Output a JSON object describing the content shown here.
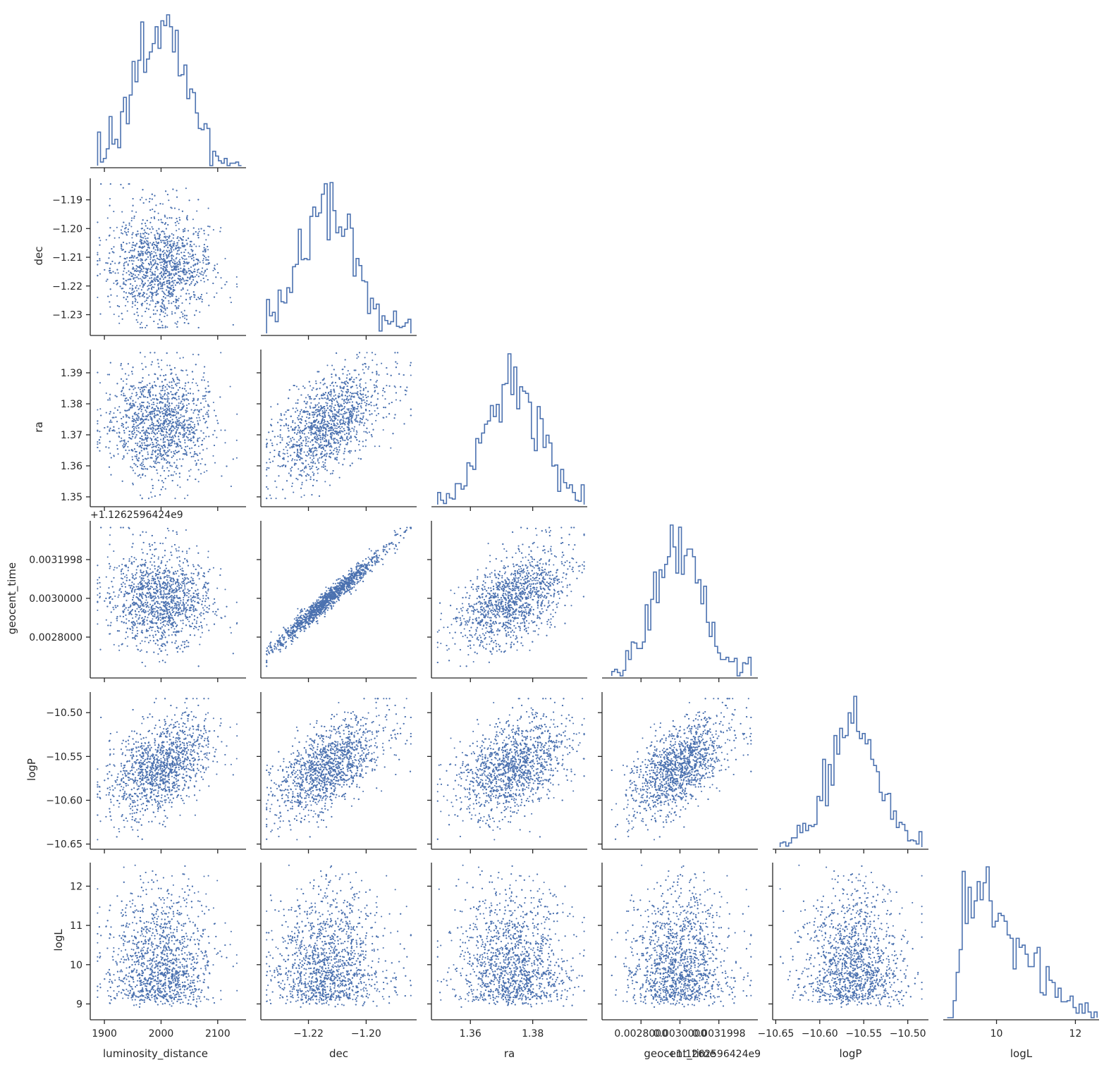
{
  "chart_data": {
    "type": "scatter",
    "title": "",
    "variables": [
      {
        "name": "luminosity_distance",
        "range": [
          1875,
          2150
        ],
        "ticks": [
          1900,
          2000,
          2100
        ],
        "tick_labels": [
          "1900",
          "2000",
          "2100"
        ],
        "mean": 2000,
        "sd": 45,
        "min": 1888,
        "max": 2142
      },
      {
        "name": "dec",
        "range": [
          -1.2365,
          -1.1825
        ],
        "ticks": [
          -1.23,
          -1.22,
          -1.21,
          -1.2,
          -1.19
        ],
        "tick_labels": [
          "−1.23",
          "−1.22",
          "−1.21",
          "−1.20",
          "−1.19"
        ],
        "x_ticks": [
          -1.22,
          -1.2
        ],
        "x_tick_labels": [
          "−1.22",
          "−1.20"
        ],
        "mean": -1.213,
        "sd": 0.0095,
        "min": -1.2345,
        "max": -1.1845
      },
      {
        "name": "ra",
        "range": [
          1.3475,
          1.3975
        ],
        "ticks": [
          1.35,
          1.36,
          1.37,
          1.38,
          1.39
        ],
        "tick_labels": [
          "1.35",
          "1.36",
          "1.37",
          "1.38",
          "1.39"
        ],
        "x_ticks": [
          1.36,
          1.38
        ],
        "x_tick_labels": [
          "1.36",
          "1.38"
        ],
        "mean": 1.3735,
        "sd": 0.0088,
        "min": 1.3495,
        "max": 1.3965
      },
      {
        "name": "geocent_time",
        "range": [
          0.0026,
          0.0034
        ],
        "ticks": [
          0.0028,
          0.003,
          0.0031998
        ],
        "tick_labels": [
          "0.0028000",
          "0.0030000",
          "0.0031998"
        ],
        "offset_label": "+1.126259642​4e9",
        "offset_text": "+1.1262596424e9",
        "mean": 0.002995,
        "sd": 0.000125,
        "min": 0.00265,
        "max": 0.003365
      },
      {
        "name": "logP",
        "range": [
          -10.6535,
          -10.4765
        ],
        "ticks": [
          -10.65,
          -10.6,
          -10.55,
          -10.5
        ],
        "tick_labels": [
          "−10.65",
          "−10.60",
          "−10.55",
          "−10.50"
        ],
        "mean": -10.562,
        "sd": 0.03,
        "min": -10.645,
        "max": -10.484
      },
      {
        "name": "logL",
        "range": [
          8.65,
          12.6
        ],
        "ticks": [
          9,
          10,
          11,
          12
        ],
        "tick_labels": [
          "9",
          "10",
          "11",
          "12"
        ],
        "x_ticks": [
          10,
          12
        ],
        "x_tick_labels": [
          "10",
          "12"
        ],
        "mode": 9.5,
        "min": 8.75,
        "max": 12.55
      }
    ],
    "correlations": [
      {
        "x": "luminosity_distance",
        "y": "dec",
        "r": 0.0
      },
      {
        "x": "luminosity_distance",
        "y": "ra",
        "r": 0.0
      },
      {
        "x": "dec",
        "y": "ra",
        "r": 0.55
      },
      {
        "x": "luminosity_distance",
        "y": "geocent_time",
        "r": 0.0
      },
      {
        "x": "dec",
        "y": "geocent_time",
        "r": 0.98
      },
      {
        "x": "ra",
        "y": "geocent_time",
        "r": 0.55
      },
      {
        "x": "luminosity_distance",
        "y": "logP",
        "r": 0.45
      },
      {
        "x": "dec",
        "y": "logP",
        "r": 0.65
      },
      {
        "x": "ra",
        "y": "logP",
        "r": 0.4
      },
      {
        "x": "geocent_time",
        "y": "logP",
        "r": 0.65
      },
      {
        "x": "luminosity_distance",
        "y": "logL",
        "r": 0.0
      },
      {
        "x": "dec",
        "y": "logL",
        "r": 0.0
      },
      {
        "x": "ra",
        "y": "logL",
        "r": 0.0
      },
      {
        "x": "geocent_time",
        "y": "logL",
        "r": 0.0
      },
      {
        "x": "logP",
        "y": "logL",
        "r": 0.0
      }
    ],
    "diagonal": "histogram (step)",
    "off_diagonal": "scatter",
    "grid": false,
    "legend": "none",
    "color": "#4c72b0"
  }
}
